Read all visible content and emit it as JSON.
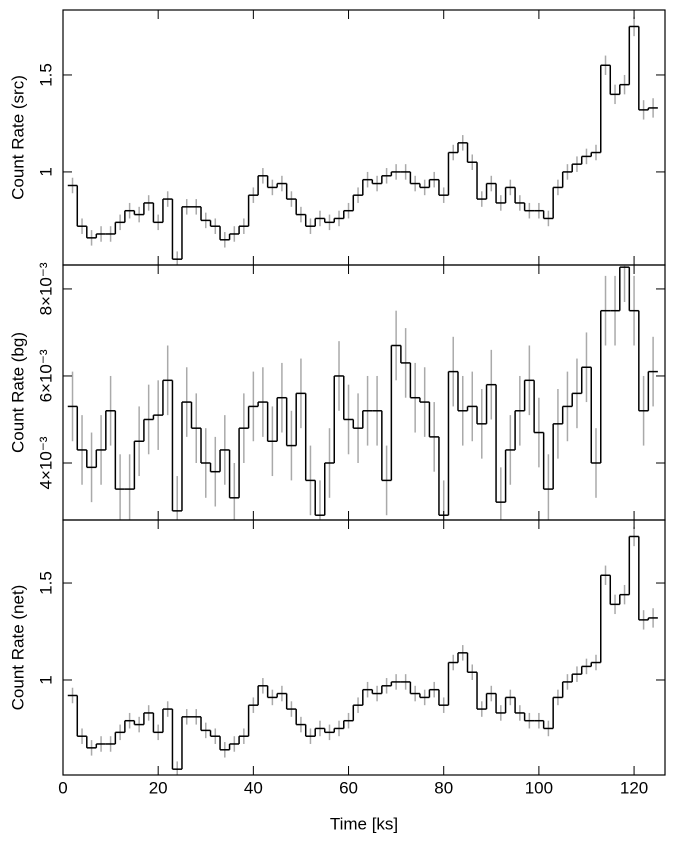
{
  "chart_data": [
    {
      "type": "step",
      "ylabel": "Count Rate (src)",
      "xlim": [
        0,
        126.5
      ],
      "ylim": [
        0.52,
        1.835
      ],
      "yticks": [
        1,
        1.5
      ],
      "x": [
        2,
        4,
        6,
        8,
        10,
        12,
        14,
        16,
        18,
        20,
        22,
        24,
        26,
        28,
        30,
        32,
        34,
        36,
        38,
        40,
        42,
        44,
        46,
        48,
        50,
        52,
        54,
        56,
        58,
        60,
        62,
        64,
        66,
        68,
        70,
        72,
        74,
        76,
        78,
        80,
        82,
        84,
        86,
        88,
        90,
        92,
        94,
        96,
        98,
        100,
        102,
        104,
        106,
        108,
        110,
        112,
        114,
        116,
        118,
        120,
        122,
        124
      ],
      "series": [
        {
          "color": "#000000",
          "error_color": "#aaaaaa",
          "values": [
            0.93,
            0.72,
            0.66,
            0.68,
            0.68,
            0.74,
            0.8,
            0.78,
            0.84,
            0.74,
            0.86,
            0.55,
            0.82,
            0.82,
            0.75,
            0.72,
            0.65,
            0.68,
            0.72,
            0.88,
            0.98,
            0.92,
            0.94,
            0.86,
            0.78,
            0.72,
            0.76,
            0.74,
            0.76,
            0.8,
            0.88,
            0.96,
            0.94,
            0.98,
            1.0,
            1.0,
            0.94,
            0.92,
            0.96,
            0.88,
            1.1,
            1.15,
            1.05,
            0.86,
            0.94,
            0.84,
            0.92,
            0.84,
            0.8,
            0.8,
            0.76,
            0.92,
            1.0,
            1.04,
            1.08,
            1.1,
            1.55,
            1.4,
            1.45,
            1.75,
            1.32,
            1.33
          ],
          "errors": [
            0.04,
            0.04,
            0.04,
            0.04,
            0.04,
            0.04,
            0.04,
            0.04,
            0.04,
            0.04,
            0.04,
            0.04,
            0.04,
            0.04,
            0.04,
            0.04,
            0.04,
            0.04,
            0.04,
            0.04,
            0.04,
            0.04,
            0.04,
            0.04,
            0.04,
            0.04,
            0.04,
            0.04,
            0.04,
            0.04,
            0.04,
            0.04,
            0.04,
            0.04,
            0.04,
            0.04,
            0.04,
            0.04,
            0.04,
            0.04,
            0.04,
            0.04,
            0.04,
            0.04,
            0.04,
            0.04,
            0.04,
            0.04,
            0.04,
            0.04,
            0.04,
            0.04,
            0.04,
            0.04,
            0.04,
            0.04,
            0.05,
            0.05,
            0.05,
            0.05,
            0.05,
            0.05
          ]
        }
      ]
    },
    {
      "type": "step",
      "ylabel": "Count Rate (bg)",
      "xlim": [
        0,
        126.5
      ],
      "ylim": [
        0.00269,
        0.00855
      ],
      "yticks": [
        {
          "value": 0.004,
          "label": "4×10⁻³"
        },
        {
          "value": 0.006,
          "label": "6×10⁻³"
        },
        {
          "value": 0.008,
          "label": "8×10⁻³"
        }
      ],
      "x": [
        2,
        4,
        6,
        8,
        10,
        12,
        14,
        16,
        18,
        20,
        22,
        24,
        26,
        28,
        30,
        32,
        34,
        36,
        38,
        40,
        42,
        44,
        46,
        48,
        50,
        52,
        54,
        56,
        58,
        60,
        62,
        64,
        66,
        68,
        70,
        72,
        74,
        76,
        78,
        80,
        82,
        84,
        86,
        88,
        90,
        92,
        94,
        96,
        98,
        100,
        102,
        104,
        106,
        108,
        110,
        112,
        114,
        116,
        118,
        120,
        122,
        124
      ],
      "series": [
        {
          "color": "#000000",
          "error_color": "#aaaaaa",
          "values": [
            0.0053,
            0.0043,
            0.0039,
            0.0043,
            0.0052,
            0.0034,
            0.0034,
            0.0045,
            0.005,
            0.0051,
            0.0059,
            0.0029,
            0.0054,
            0.0048,
            0.004,
            0.0038,
            0.0043,
            0.0032,
            0.0048,
            0.0053,
            0.0054,
            0.0045,
            0.0055,
            0.0044,
            0.0056,
            0.0036,
            0.0028,
            0.004,
            0.006,
            0.005,
            0.0048,
            0.0052,
            0.0052,
            0.0036,
            0.0067,
            0.0063,
            0.0055,
            0.0054,
            0.0046,
            0.0028,
            0.0061,
            0.0052,
            0.0053,
            0.0049,
            0.0058,
            0.0031,
            0.0043,
            0.0052,
            0.0059,
            0.0047,
            0.0034,
            0.0049,
            0.0053,
            0.0056,
            0.0062,
            0.004,
            0.0075,
            0.0075,
            0.0085,
            0.0075,
            0.0052,
            0.0061
          ],
          "errors": [
            0.0008,
            0.0008,
            0.0008,
            0.0008,
            0.0008,
            0.0008,
            0.0008,
            0.0008,
            0.0008,
            0.0008,
            0.0008,
            0.0008,
            0.0008,
            0.0008,
            0.0008,
            0.0008,
            0.0008,
            0.0008,
            0.0008,
            0.0008,
            0.0008,
            0.0008,
            0.0008,
            0.0008,
            0.0008,
            0.0008,
            0.0008,
            0.0008,
            0.0008,
            0.0008,
            0.0008,
            0.0008,
            0.0008,
            0.0008,
            0.0008,
            0.0008,
            0.0008,
            0.0008,
            0.0008,
            0.0008,
            0.0008,
            0.0008,
            0.0008,
            0.0008,
            0.0008,
            0.0008,
            0.0008,
            0.0008,
            0.0008,
            0.0008,
            0.0008,
            0.0008,
            0.0008,
            0.0008,
            0.0008,
            0.0008,
            0.0008,
            0.0008,
            0.0008,
            0.0008,
            0.0008,
            0.0008
          ]
        }
      ]
    },
    {
      "type": "step",
      "ylabel": "Count Rate (net)",
      "xlabel": "Time [ks]",
      "xlim": [
        0,
        126.5
      ],
      "ylim": [
        0.51,
        1.825
      ],
      "yticks": [
        1,
        1.5
      ],
      "xticks": [
        0,
        20,
        40,
        60,
        80,
        100,
        120
      ],
      "x": [
        2,
        4,
        6,
        8,
        10,
        12,
        14,
        16,
        18,
        20,
        22,
        24,
        26,
        28,
        30,
        32,
        34,
        36,
        38,
        40,
        42,
        44,
        46,
        48,
        50,
        52,
        54,
        56,
        58,
        60,
        62,
        64,
        66,
        68,
        70,
        72,
        74,
        76,
        78,
        80,
        82,
        84,
        86,
        88,
        90,
        92,
        94,
        96,
        98,
        100,
        102,
        104,
        106,
        108,
        110,
        112,
        114,
        116,
        118,
        120,
        122,
        124
      ],
      "series": [
        {
          "color": "#000000",
          "error_color": "#aaaaaa",
          "values": [
            0.92,
            0.71,
            0.65,
            0.67,
            0.67,
            0.73,
            0.79,
            0.77,
            0.83,
            0.73,
            0.85,
            0.54,
            0.81,
            0.81,
            0.74,
            0.71,
            0.64,
            0.67,
            0.71,
            0.87,
            0.97,
            0.91,
            0.93,
            0.85,
            0.77,
            0.71,
            0.75,
            0.73,
            0.75,
            0.79,
            0.87,
            0.95,
            0.93,
            0.97,
            0.99,
            0.99,
            0.93,
            0.91,
            0.95,
            0.87,
            1.09,
            1.14,
            1.04,
            0.85,
            0.93,
            0.83,
            0.91,
            0.83,
            0.79,
            0.79,
            0.75,
            0.91,
            0.99,
            1.03,
            1.07,
            1.09,
            1.54,
            1.39,
            1.44,
            1.74,
            1.31,
            1.32
          ],
          "errors": [
            0.04,
            0.04,
            0.04,
            0.04,
            0.04,
            0.04,
            0.04,
            0.04,
            0.04,
            0.04,
            0.04,
            0.04,
            0.04,
            0.04,
            0.04,
            0.04,
            0.04,
            0.04,
            0.04,
            0.04,
            0.04,
            0.04,
            0.04,
            0.04,
            0.04,
            0.04,
            0.04,
            0.04,
            0.04,
            0.04,
            0.04,
            0.04,
            0.04,
            0.04,
            0.04,
            0.04,
            0.04,
            0.04,
            0.04,
            0.04,
            0.04,
            0.04,
            0.04,
            0.04,
            0.04,
            0.04,
            0.04,
            0.04,
            0.04,
            0.04,
            0.04,
            0.04,
            0.04,
            0.04,
            0.04,
            0.04,
            0.05,
            0.05,
            0.05,
            0.05,
            0.05,
            0.05
          ]
        }
      ]
    }
  ]
}
